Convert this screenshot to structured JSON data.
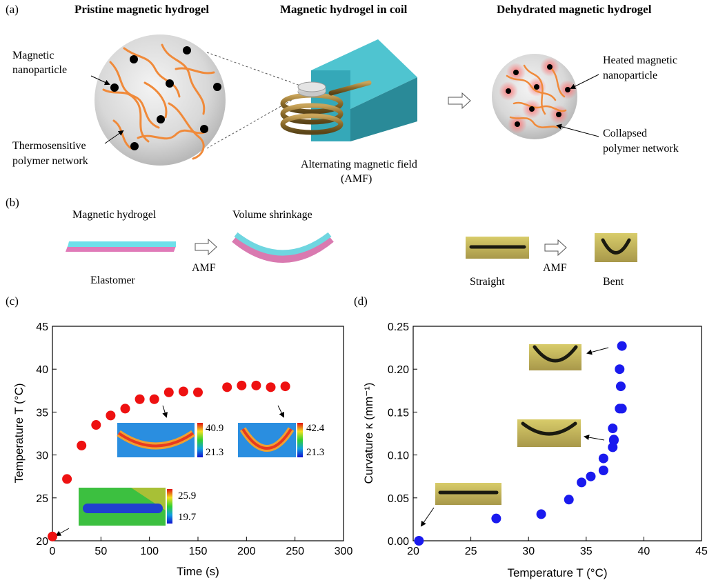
{
  "panel_a": {
    "label": "(a)",
    "titles": [
      "Pristine magnetic hydrogel",
      "Magnetic hydrogel  in coil",
      "Dehydrated magnetic hydrogel"
    ],
    "left_labels": [
      "Magnetic",
      "nanoparticle",
      "Thermosensitive",
      "polymer network"
    ],
    "coil_labels": [
      "Alternating magnetic field",
      "(AMF)"
    ],
    "right_labels": [
      "Heated magnetic",
      "nanoparticle",
      "Collapsed",
      "polymer network"
    ]
  },
  "panel_b": {
    "label": "(b)",
    "hydrogel_label": "Magnetic hydrogel",
    "shrink_label": "Volume shrinkage",
    "elastomer_label": "Elastomer",
    "amf_label_1": "AMF",
    "straight_label": "Straight",
    "amf_label_2": "AMF",
    "bent_label": "Bent"
  },
  "panel_c_label": "(c)",
  "panel_d_label": "(d)",
  "colors": {
    "red_dot": "#ee1111",
    "blue_dot": "#1a1aee",
    "coil": "#9a7a3a",
    "block": "#2fa3b2",
    "fiber": "#f08a3a",
    "hydrogel_layer": "#6fd6e0",
    "elastomer_layer": "#d97ab0",
    "photo_bg": "#c8b64a"
  },
  "chart_data": [
    {
      "type": "scatter",
      "xlabel": "Time (s)",
      "ylabel": "Temperature T (°C)",
      "xlim": [
        0,
        300
      ],
      "ylim": [
        20,
        45
      ],
      "xticks": [
        "0",
        "50",
        "100",
        "150",
        "200",
        "250",
        "300"
      ],
      "yticks": [
        "20",
        "25",
        "30",
        "35",
        "40",
        "45"
      ],
      "x": [
        0,
        15,
        30,
        45,
        60,
        75,
        90,
        105,
        120,
        135,
        150,
        180,
        195,
        210,
        225,
        240
      ],
      "y": [
        20.5,
        27.2,
        31.1,
        33.5,
        34.6,
        35.4,
        36.5,
        36.5,
        37.3,
        37.4,
        37.3,
        37.9,
        38.1,
        38.1,
        37.9,
        38.0
      ],
      "insets": [
        {
          "max": "25.9",
          "min": "19.7"
        },
        {
          "max": "40.9",
          "min": "21.3"
        },
        {
          "max": "42.4",
          "min": "21.3"
        }
      ]
    },
    {
      "type": "scatter",
      "xlabel": "Temperature T (°C)",
      "ylabel": "Curvature κ (mm⁻¹)",
      "xlim": [
        20,
        45
      ],
      "ylim": [
        0,
        0.25
      ],
      "xticks": [
        "20",
        "25",
        "30",
        "35",
        "40",
        "45"
      ],
      "yticks": [
        "0.00",
        "0.05",
        "0.10",
        "0.15",
        "0.20",
        "0.25"
      ],
      "x": [
        20.5,
        27.2,
        31.1,
        33.5,
        34.6,
        35.4,
        36.5,
        36.5,
        37.3,
        37.4,
        37.3,
        37.4,
        37.9,
        38.1,
        38.0,
        37.9,
        38.1
      ],
      "y": [
        0.0,
        0.026,
        0.031,
        0.048,
        0.068,
        0.075,
        0.082,
        0.096,
        0.109,
        0.117,
        0.131,
        0.118,
        0.154,
        0.154,
        0.18,
        0.2,
        0.227
      ]
    }
  ]
}
